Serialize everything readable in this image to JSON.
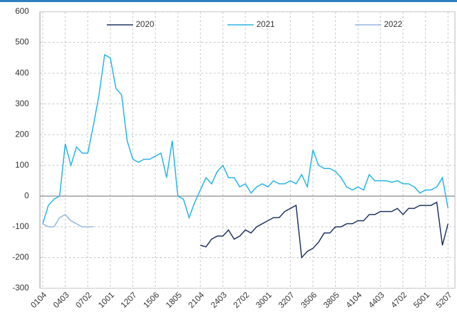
{
  "chart_data": {
    "type": "line",
    "categories": [
      "0104",
      null,
      null,
      null,
      "0403",
      null,
      null,
      null,
      "0702",
      null,
      null,
      null,
      "1001",
      null,
      null,
      null,
      "1207",
      null,
      null,
      null,
      "1506",
      null,
      null,
      null,
      "1805",
      null,
      null,
      null,
      "2104",
      null,
      null,
      null,
      "2403",
      null,
      null,
      null,
      "2702",
      null,
      null,
      null,
      "3001",
      null,
      null,
      null,
      "3207",
      null,
      null,
      null,
      "3506",
      null,
      null,
      null,
      "3805",
      null,
      null,
      null,
      "4104",
      null,
      null,
      null,
      "4403",
      null,
      null,
      null,
      "4702",
      null,
      null,
      null,
      "5001",
      null,
      null,
      null,
      "5207"
    ],
    "series": [
      {
        "name": "2020",
        "color": "#1c3160",
        "values": [
          null,
          null,
          null,
          null,
          null,
          null,
          null,
          null,
          null,
          null,
          null,
          null,
          null,
          null,
          null,
          null,
          null,
          null,
          null,
          null,
          null,
          null,
          null,
          null,
          null,
          null,
          null,
          null,
          -160,
          -165,
          -140,
          -130,
          -130,
          -110,
          -140,
          -130,
          -110,
          -120,
          -100,
          -90,
          -80,
          -70,
          -70,
          -50,
          -40,
          -30,
          -200,
          -180,
          -170,
          -150,
          -120,
          -120,
          -100,
          -100,
          -90,
          -90,
          -80,
          -80,
          -60,
          -60,
          -50,
          -50,
          -50,
          -40,
          -60,
          -40,
          -40,
          -30,
          -30,
          -30,
          -20,
          -160,
          -90
        ]
      },
      {
        "name": "2021",
        "color": "#23b4e6",
        "values": [
          -90,
          -30,
          -10,
          0,
          170,
          100,
          160,
          140,
          140,
          230,
          330,
          460,
          450,
          350,
          330,
          180,
          120,
          110,
          120,
          120,
          130,
          140,
          60,
          180,
          0,
          -10,
          -70,
          -20,
          20,
          60,
          40,
          80,
          100,
          60,
          60,
          30,
          40,
          10,
          30,
          40,
          30,
          50,
          40,
          40,
          50,
          40,
          70,
          30,
          150,
          100,
          90,
          90,
          80,
          60,
          30,
          20,
          30,
          20,
          70,
          50,
          50,
          50,
          45,
          50,
          40,
          40,
          30,
          10,
          20,
          20,
          30,
          60,
          -40
        ]
      },
      {
        "name": "2022",
        "color": "#93b6df",
        "values": [
          -90,
          -100,
          -100,
          -70,
          -60,
          -80,
          -90,
          -100,
          -100,
          -100,
          null,
          null,
          null,
          null,
          null,
          null,
          null,
          null,
          null,
          null,
          null,
          null,
          null,
          null,
          null,
          null,
          null,
          null,
          null,
          null,
          null,
          null,
          null,
          null,
          null,
          null,
          null,
          null,
          null,
          null,
          null,
          null,
          null,
          null,
          null,
          null,
          null,
          null,
          null,
          null,
          null,
          null,
          null,
          null,
          null,
          null,
          null,
          null,
          null,
          null,
          null,
          null,
          null,
          null,
          null,
          null,
          null,
          null,
          null,
          null,
          null,
          null,
          null
        ]
      }
    ],
    "ylim": [
      -300,
      600
    ],
    "yticks": [
      -300,
      -200,
      -100,
      0,
      100,
      200,
      300,
      400,
      500,
      600
    ],
    "grid": true
  }
}
